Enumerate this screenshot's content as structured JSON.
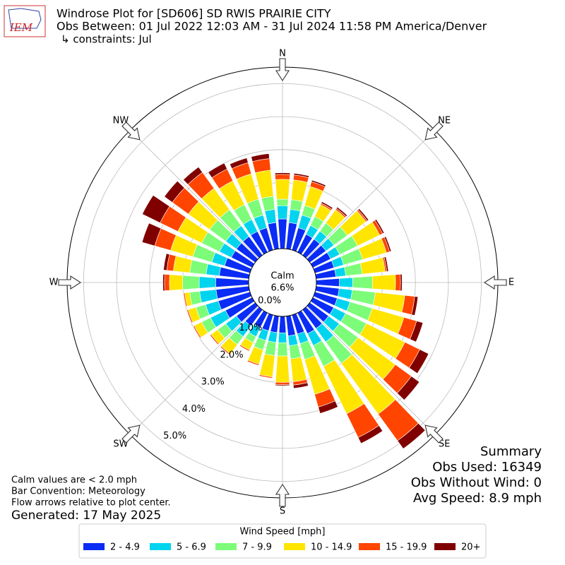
{
  "header": {
    "logo_text": "IEM",
    "title_lines": [
      "Windrose Plot for [SD606] SD RWIS PRAIRIE CITY",
      "Obs Between: 01 Jul 2022 12:03 AM - 31 Jul 2024 11:58 PM America/Denver",
      "↳ constraints: Jul"
    ]
  },
  "chart_data": {
    "type": "windrose",
    "x": [
      0,
      10,
      20,
      30,
      40,
      50,
      60,
      70,
      80,
      90,
      100,
      110,
      120,
      130,
      140,
      150,
      160,
      170,
      180,
      190,
      200,
      210,
      220,
      230,
      240,
      250,
      260,
      270,
      280,
      290,
      300,
      310,
      320,
      330,
      340,
      350
    ],
    "compass": [
      {
        "value": 0,
        "label": "N"
      },
      {
        "value": 45,
        "label": "NE"
      },
      {
        "value": 90,
        "label": "E"
      },
      {
        "value": 135,
        "label": "SE"
      },
      {
        "value": 180,
        "label": "S"
      },
      {
        "value": 225,
        "label": "SW"
      },
      {
        "value": 270,
        "label": "W"
      },
      {
        "value": 315,
        "label": "NW"
      }
    ],
    "ylim": [
      0,
      5.5
    ],
    "yticks": [
      {
        "value": 0,
        "label": "0.0%"
      },
      {
        "value": 1,
        "label": "1.0%"
      },
      {
        "value": 2,
        "label": "2.0%"
      },
      {
        "value": 3,
        "label": "3.0%"
      },
      {
        "value": 4,
        "label": "4.0%"
      },
      {
        "value": 5,
        "label": "5.0%"
      }
    ],
    "grid": true,
    "calm": {
      "label": "Calm",
      "value": 6.6,
      "value_label": "6.6%"
    },
    "legend_title": "Wind Speed [mph]",
    "series": [
      {
        "name": "2 - 4.9",
        "color": "#0a2cf5",
        "values": [
          0.9,
          0.8,
          0.7,
          0.6,
          0.6,
          0.6,
          0.6,
          0.6,
          0.6,
          0.7,
          0.7,
          0.7,
          0.7,
          0.7,
          0.7,
          0.7,
          0.6,
          0.6,
          0.5,
          0.5,
          0.5,
          0.5,
          0.6,
          0.7,
          0.9,
          1.0,
          1.0,
          1.0,
          0.9,
          0.8,
          0.7,
          0.7,
          0.7,
          0.7,
          0.7,
          0.8
        ]
      },
      {
        "name": "5 - 6.9",
        "color": "#00d4ee",
        "values": [
          0.4,
          0.4,
          0.4,
          0.3,
          0.3,
          0.3,
          0.3,
          0.3,
          0.3,
          0.4,
          0.4,
          0.4,
          0.4,
          0.4,
          0.5,
          0.4,
          0.3,
          0.3,
          0.3,
          0.3,
          0.3,
          0.3,
          0.4,
          0.4,
          0.5,
          0.4,
          0.5,
          0.5,
          0.4,
          0.4,
          0.4,
          0.4,
          0.4,
          0.4,
          0.4,
          0.4
        ]
      },
      {
        "name": "7 - 9.9",
        "color": "#7dfc7a",
        "values": [
          0.2,
          0.3,
          0.3,
          0.3,
          0.3,
          0.5,
          0.6,
          0.6,
          0.5,
          0.6,
          0.7,
          0.7,
          0.7,
          0.7,
          0.8,
          0.7,
          0.5,
          0.4,
          0.4,
          0.4,
          0.3,
          0.2,
          0.3,
          0.3,
          0.3,
          0.3,
          0.3,
          0.5,
          0.5,
          0.6,
          0.6,
          0.6,
          0.6,
          0.5,
          0.5,
          0.4
        ]
      },
      {
        "name": "10 - 14.9",
        "color": "#ffe500",
        "values": [
          0.6,
          0.6,
          0.6,
          0.4,
          0.5,
          0.7,
          0.75,
          0.75,
          0.7,
          0.7,
          0.9,
          1.0,
          1.3,
          1.4,
          1.9,
          1.6,
          1.1,
          0.7,
          0.8,
          0.65,
          0.45,
          0.25,
          0.35,
          0.25,
          0.25,
          0.25,
          0.15,
          0.4,
          0.5,
          0.7,
          0.8,
          0.8,
          0.8,
          0.8,
          0.8,
          0.8
        ]
      },
      {
        "name": "15 - 19.9",
        "color": "#ff4500",
        "values": [
          0.15,
          0.15,
          0.15,
          0.05,
          0.05,
          0.05,
          0.1,
          0.1,
          0.05,
          0.15,
          0.3,
          0.4,
          0.5,
          0.6,
          1.0,
          0.8,
          0.4,
          0.1,
          0.07,
          0.04,
          0.04,
          0.04,
          0.04,
          0.04,
          0.04,
          0.04,
          0.04,
          0.15,
          0.2,
          0.5,
          0.6,
          0.6,
          0.6,
          0.4,
          0.35,
          0.35
        ]
      },
      {
        "name": "20+",
        "color": "#800000",
        "values": [
          0.05,
          0.05,
          0.05,
          0.05,
          0.05,
          0.05,
          0.05,
          0.05,
          0.05,
          0.05,
          0.1,
          0.2,
          0.3,
          0.3,
          0.3,
          0.2,
          0.2,
          0.1,
          0.03,
          0.01,
          0.01,
          0.01,
          0.01,
          0.01,
          0.01,
          0.01,
          0.01,
          0.05,
          0.1,
          0.4,
          0.6,
          0.3,
          0.2,
          0.2,
          0.15,
          0.15
        ]
      }
    ]
  },
  "notes": [
    "Calm values are < 2.0 mph",
    "Bar Convention: Meteorology",
    "Flow arrows relative to plot center."
  ],
  "generated": "Generated: 17 May 2025",
  "summary": [
    "Summary",
    "Obs Used: 16349",
    "Obs Without Wind: 0",
    "Avg Speed: 8.9 mph"
  ]
}
